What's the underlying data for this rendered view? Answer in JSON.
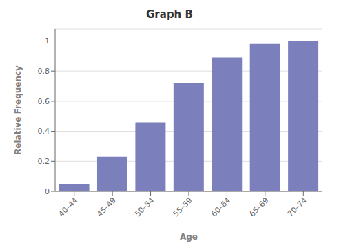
{
  "chart_data": {
    "type": "bar",
    "title": "Graph B",
    "xlabel": "Age",
    "ylabel": "Relative Frequency",
    "categories": [
      "40–44",
      "45–49",
      "50–54",
      "55–59",
      "60–64",
      "65–69",
      "70–74"
    ],
    "values": [
      0.05,
      0.23,
      0.46,
      0.72,
      0.89,
      0.98,
      1
    ],
    "color": "#7b7fbb",
    "ylim": [
      0,
      1.08
    ],
    "yticks": [
      0,
      0.2,
      0.4,
      0.6,
      0.8,
      1
    ],
    "grid": true
  }
}
